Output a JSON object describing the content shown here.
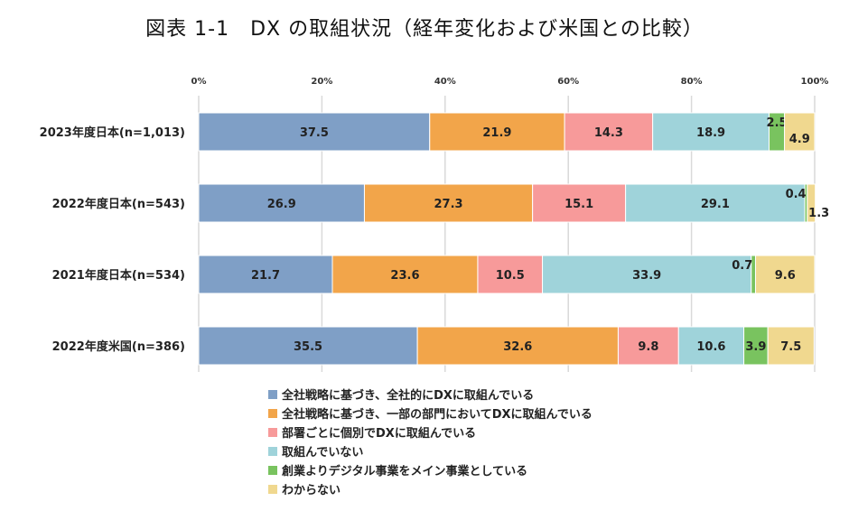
{
  "chart_data": {
    "type": "bar",
    "orientation": "horizontal",
    "stacked": true,
    "title": "図表 1-1　DX の取組状況（経年変化および米国との比較）",
    "xlim": [
      0,
      100
    ],
    "xticks": [
      "0%",
      "20%",
      "40%",
      "60%",
      "80%",
      "100%"
    ],
    "grid": true,
    "legend_position": "bottom",
    "categories": [
      "2023年度日本(n=1,013)",
      "2022年度日本(n=543)",
      "2021年度日本(n=534)",
      "2022年度米国(n=386)"
    ],
    "series": [
      {
        "name": "全社戦略に基づき、全社的にDXに取組んでいる",
        "color": "#7f9fc6",
        "values": [
          37.5,
          26.9,
          21.7,
          35.5
        ]
      },
      {
        "name": "全社戦略に基づき、一部の部門においてDXに取組んでいる",
        "color": "#f2a54a",
        "values": [
          21.9,
          27.3,
          23.6,
          32.6
        ]
      },
      {
        "name": "部署ごとに個別でDXに取組んでいる",
        "color": "#f79a9a",
        "values": [
          14.3,
          15.1,
          10.5,
          9.8
        ]
      },
      {
        "name": "取組んでいない",
        "color": "#9fd3da",
        "values": [
          18.9,
          29.1,
          33.9,
          10.6
        ]
      },
      {
        "name": "創業よりデジタル事業をメイン事業としている",
        "color": "#79c35f",
        "values": [
          2.5,
          0.4,
          0.7,
          3.9
        ]
      },
      {
        "name": "わからない",
        "color": "#f0d88f",
        "values": [
          4.9,
          1.3,
          9.6,
          7.5
        ]
      }
    ]
  }
}
